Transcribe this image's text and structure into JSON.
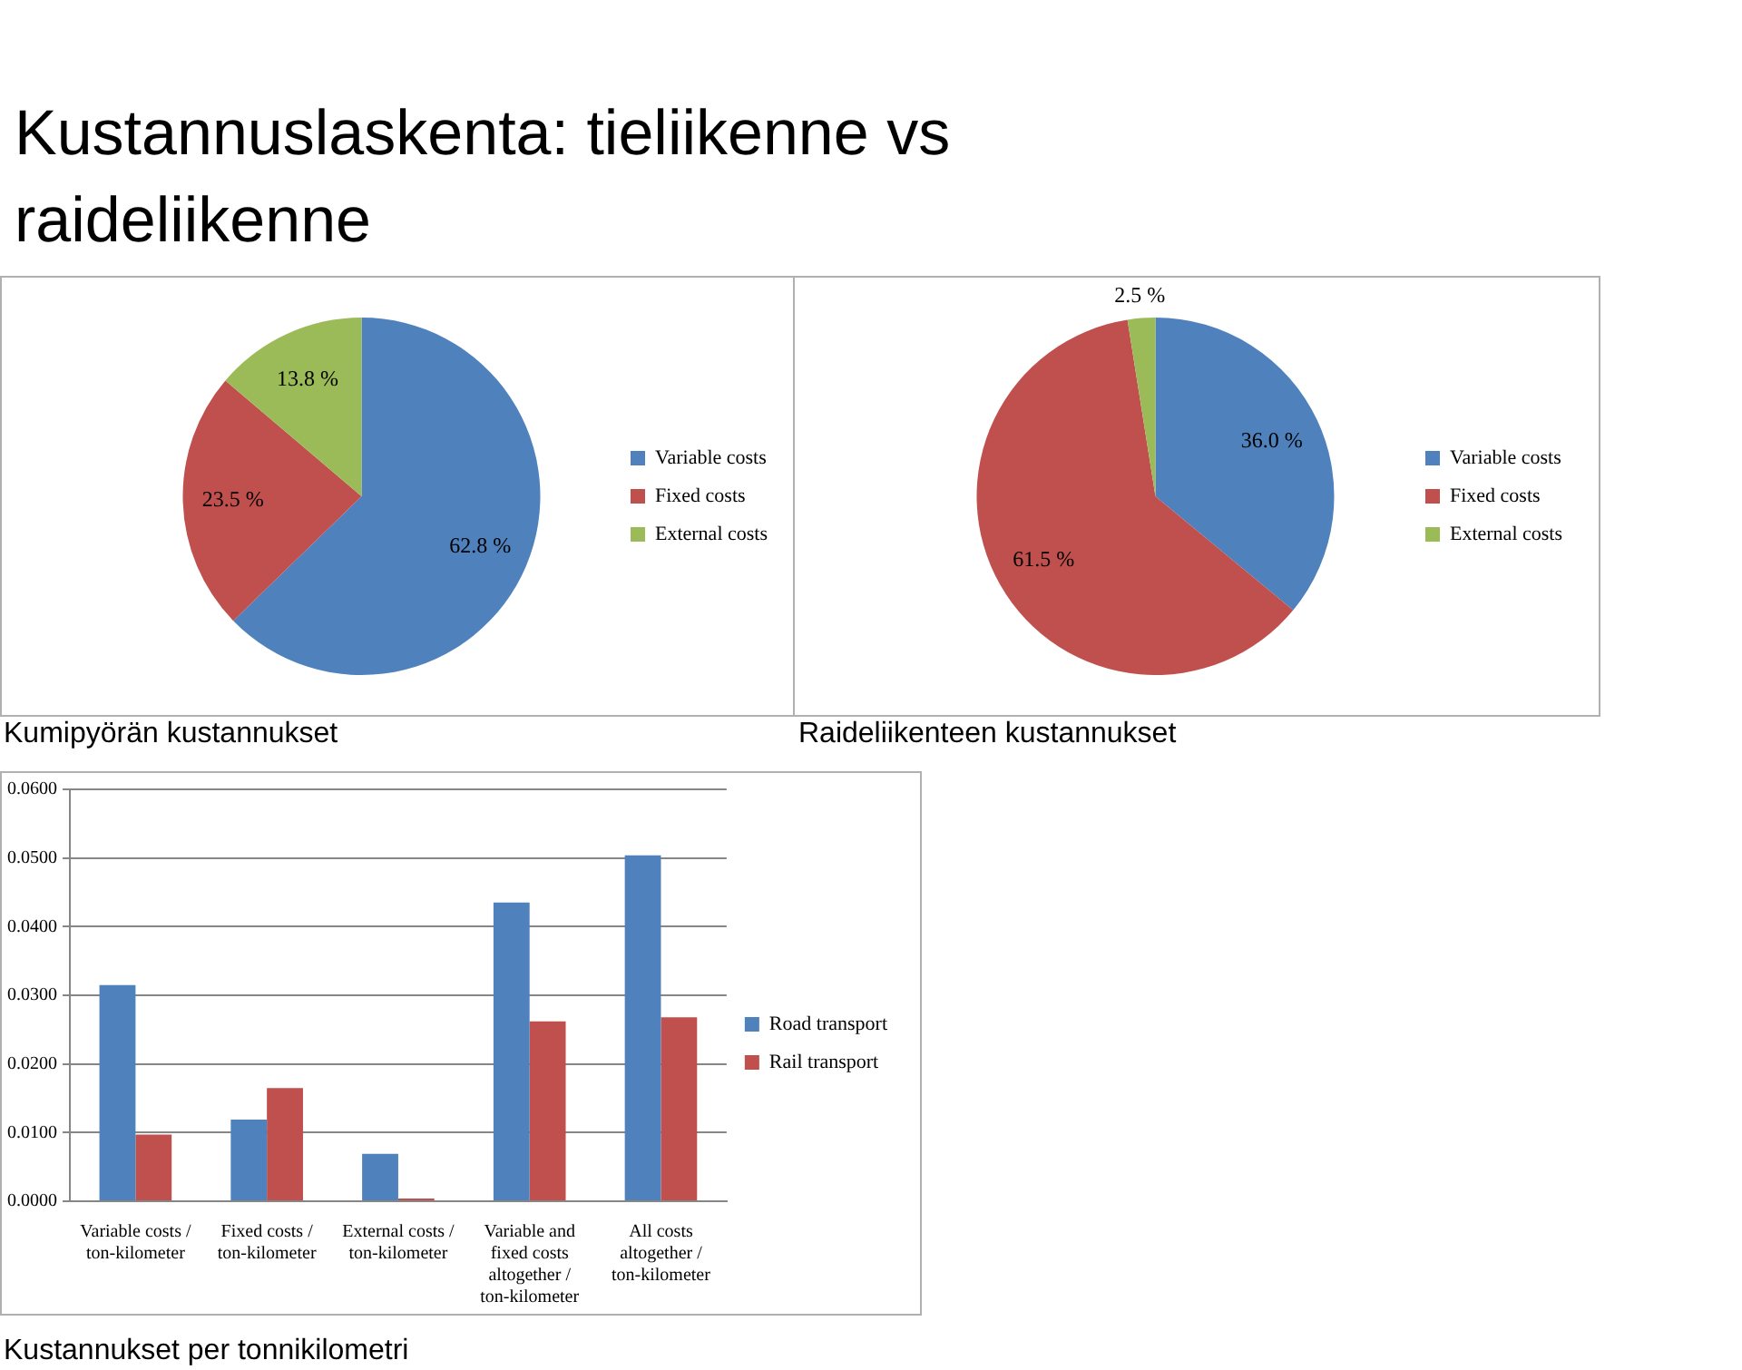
{
  "chart_data": [
    {
      "type": "pie",
      "annotations": [
        "Kustannuslaskenta: tieliikenne vs raideliikenne"
      ],
      "title": "Kumipyörän kustannukset",
      "categories": [
        "Variable costs",
        "Fixed costs",
        "External costs"
      ],
      "values": [
        62.8,
        23.5,
        13.8
      ],
      "colors": [
        "#4f81bd",
        "#c0504d",
        "#9bbb59"
      ],
      "value_labels": [
        "62.8 %",
        "23.5 %",
        "13.8 %"
      ],
      "legend": "right"
    },
    {
      "type": "pie",
      "title": "Raideliikenteen kustannukset",
      "categories": [
        "Variable costs",
        "Fixed costs",
        "External costs"
      ],
      "values": [
        36.0,
        61.5,
        2.5
      ],
      "colors": [
        "#4f81bd",
        "#c0504d",
        "#9bbb59"
      ],
      "value_labels": [
        "36.0 %",
        "61.5 %",
        "2.5 %"
      ],
      "legend": "right"
    },
    {
      "type": "bar",
      "title": "Kustannukset per tonnikilometri",
      "categories": [
        "Variable costs / ton-kilometer",
        "Fixed costs / ton-kilometer",
        "External costs / ton-kilometer",
        "Variable and fixed costs altogether / ton-kilometer",
        "All costs altogether / ton-kilometer"
      ],
      "series": [
        {
          "name": "Road transport",
          "color": "#4f81bd",
          "values": [
            0.0315,
            0.0119,
            0.0069,
            0.0435,
            0.0504
          ]
        },
        {
          "name": "Rail transport",
          "color": "#c0504d",
          "values": [
            0.0097,
            0.0165,
            0.0004,
            0.0262,
            0.0268
          ]
        }
      ],
      "ylim": [
        0,
        0.06
      ],
      "yticks": [
        {
          "value": 0,
          "label": "0.0000"
        },
        {
          "value": 0.01,
          "label": "0.0100"
        },
        {
          "value": 0.02,
          "label": "0.0200"
        },
        {
          "value": 0.03,
          "label": "0.0300"
        },
        {
          "value": 0.04,
          "label": "0.0400"
        },
        {
          "value": 0.05,
          "label": "0.0500"
        },
        {
          "value": 0.06,
          "label": "0.0600"
        }
      ],
      "grid": "y",
      "legend": "right"
    }
  ]
}
